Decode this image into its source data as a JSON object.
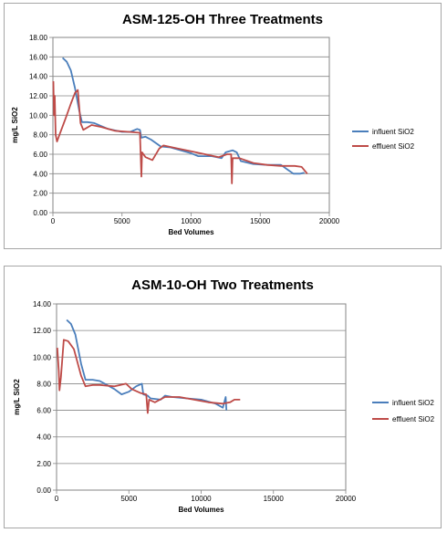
{
  "colors": {
    "influent": "#4a7ebb",
    "effluent": "#be4b48",
    "grid": "#868686"
  },
  "chart_data": [
    {
      "type": "line",
      "title": "ASM-125-OH Three Treatments",
      "xlabel": "Bed Volumes",
      "ylabel": "mg/L SiO2",
      "xlim": [
        0,
        20000
      ],
      "ylim": [
        0,
        18
      ],
      "x_ticks": [
        "0",
        "5000",
        "10000",
        "15000",
        "20000"
      ],
      "y_ticks": [
        "0.00",
        "2.00",
        "4.00",
        "6.00",
        "8.00",
        "10.00",
        "12.00",
        "14.00",
        "16.00",
        "18.00"
      ],
      "grid": "horizontal",
      "legend": "right",
      "series": [
        {
          "name": "influent SiO2",
          "color": "#4a7ebb",
          "points": [
            [
              700,
              15.9
            ],
            [
              1000,
              15.5
            ],
            [
              1300,
              14.6
            ],
            [
              1600,
              12.8
            ],
            [
              1900,
              10.5
            ],
            [
              2100,
              9.3
            ],
            [
              2500,
              9.3
            ],
            [
              3000,
              9.2
            ],
            [
              4000,
              8.6
            ],
            [
              5000,
              8.3
            ],
            [
              5600,
              8.3
            ],
            [
              6100,
              8.6
            ],
            [
              6300,
              8.5
            ],
            [
              6400,
              7.7
            ],
            [
              6700,
              7.8
            ],
            [
              7100,
              7.5
            ],
            [
              7800,
              6.8
            ],
            [
              8500,
              6.7
            ],
            [
              9500,
              6.3
            ],
            [
              10000,
              6.1
            ],
            [
              10500,
              5.8
            ],
            [
              11500,
              5.8
            ],
            [
              12200,
              5.6
            ],
            [
              12500,
              6.2
            ],
            [
              13000,
              6.4
            ],
            [
              13300,
              6.2
            ],
            [
              13600,
              5.3
            ],
            [
              14500,
              5.0
            ],
            [
              15500,
              4.9
            ],
            [
              16500,
              4.9
            ],
            [
              17000,
              4.4
            ],
            [
              17400,
              4.0
            ],
            [
              17900,
              4.0
            ],
            [
              18200,
              4.1
            ]
          ]
        },
        {
          "name": "effluent SiO2",
          "color": "#be4b48",
          "points": [
            [
              30,
              13.5
            ],
            [
              80,
              10.0
            ],
            [
              130,
              12.0
            ],
            [
              200,
              8.0
            ],
            [
              300,
              7.3
            ],
            [
              500,
              8.1
            ],
            [
              900,
              9.6
            ],
            [
              1300,
              11.2
            ],
            [
              1600,
              12.3
            ],
            [
              1800,
              12.6
            ],
            [
              2000,
              9.2
            ],
            [
              2200,
              8.5
            ],
            [
              2800,
              9.0
            ],
            [
              3500,
              8.8
            ],
            [
              4500,
              8.4
            ],
            [
              5500,
              8.3
            ],
            [
              6300,
              8.2
            ],
            [
              6400,
              3.7
            ],
            [
              6450,
              6.2
            ],
            [
              6700,
              5.7
            ],
            [
              7200,
              5.4
            ],
            [
              7700,
              6.6
            ],
            [
              8000,
              6.9
            ],
            [
              9000,
              6.6
            ],
            [
              10000,
              6.3
            ],
            [
              11000,
              6.0
            ],
            [
              12000,
              5.7
            ],
            [
              12600,
              6.0
            ],
            [
              12900,
              6.0
            ],
            [
              12950,
              3.0
            ],
            [
              13000,
              5.6
            ],
            [
              13500,
              5.6
            ],
            [
              14500,
              5.1
            ],
            [
              15500,
              4.9
            ],
            [
              16500,
              4.8
            ],
            [
              17500,
              4.8
            ],
            [
              18000,
              4.7
            ],
            [
              18400,
              4.0
            ]
          ]
        }
      ]
    },
    {
      "type": "line",
      "title": "ASM-10-OH Two Treatments",
      "xlabel": "Bed Volumes",
      "ylabel": "mg/L SiO2",
      "xlim": [
        0,
        20000
      ],
      "ylim": [
        0,
        14
      ],
      "x_ticks": [
        "0",
        "5000",
        "10000",
        "15000",
        "20000"
      ],
      "y_ticks": [
        "0.00",
        "2.00",
        "4.00",
        "6.00",
        "8.00",
        "10.00",
        "12.00",
        "14.00"
      ],
      "grid": "horizontal",
      "legend": "right",
      "series": [
        {
          "name": "influent SiO2",
          "color": "#4a7ebb",
          "points": [
            [
              700,
              12.8
            ],
            [
              1000,
              12.5
            ],
            [
              1300,
              11.7
            ],
            [
              1700,
              9.5
            ],
            [
              2000,
              8.3
            ],
            [
              2500,
              8.3
            ],
            [
              3000,
              8.2
            ],
            [
              4000,
              7.6
            ],
            [
              4500,
              7.2
            ],
            [
              5000,
              7.4
            ],
            [
              5500,
              7.8
            ],
            [
              5900,
              8.0
            ],
            [
              6000,
              7.2
            ],
            [
              6300,
              7.1
            ],
            [
              6500,
              6.9
            ],
            [
              7200,
              6.8
            ],
            [
              7500,
              7.1
            ],
            [
              8000,
              7.0
            ],
            [
              9000,
              6.9
            ],
            [
              10000,
              6.8
            ],
            [
              11000,
              6.5
            ],
            [
              11500,
              6.2
            ],
            [
              11700,
              7.0
            ],
            [
              11750,
              6.0
            ]
          ]
        },
        {
          "name": "effluent SiO2",
          "color": "#be4b48",
          "points": [
            [
              50,
              10.7
            ],
            [
              150,
              9.0
            ],
            [
              200,
              7.5
            ],
            [
              300,
              8.5
            ],
            [
              500,
              11.3
            ],
            [
              800,
              11.2
            ],
            [
              1200,
              10.6
            ],
            [
              1700,
              8.6
            ],
            [
              2000,
              7.8
            ],
            [
              2500,
              7.9
            ],
            [
              3000,
              7.9
            ],
            [
              4000,
              7.8
            ],
            [
              4800,
              8.0
            ],
            [
              5200,
              7.6
            ],
            [
              5800,
              7.3
            ],
            [
              6200,
              7.2
            ],
            [
              6300,
              5.8
            ],
            [
              6400,
              6.8
            ],
            [
              6800,
              6.6
            ],
            [
              7500,
              7.0
            ],
            [
              8500,
              7.0
            ],
            [
              9500,
              6.8
            ],
            [
              10500,
              6.6
            ],
            [
              11500,
              6.5
            ],
            [
              12000,
              6.6
            ],
            [
              12300,
              6.8
            ],
            [
              12700,
              6.8
            ]
          ]
        }
      ]
    }
  ]
}
